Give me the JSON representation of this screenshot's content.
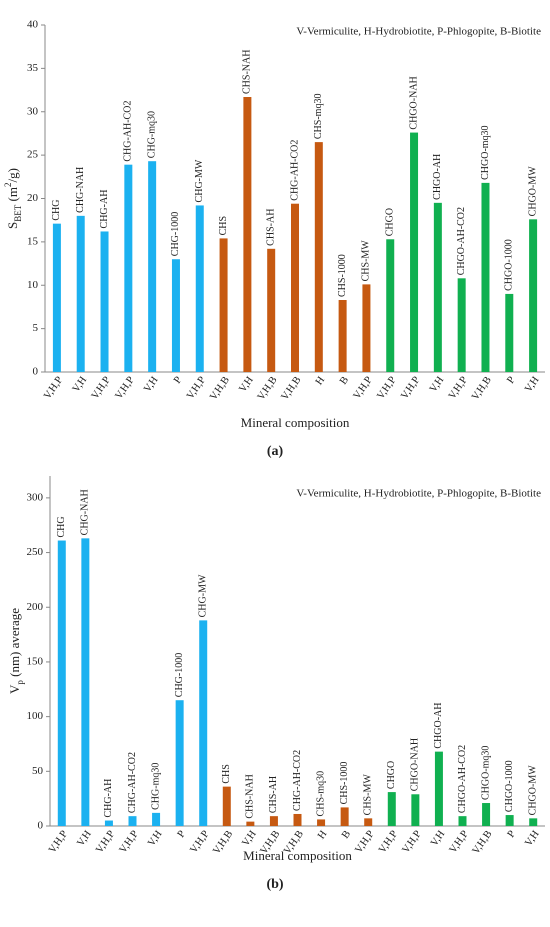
{
  "chart_data": [
    {
      "type": "bar",
      "panel_label": "(a)",
      "note": "V-Vermiculite, H-Hydrobiotite, P-Phlogopite, B-Biotite",
      "xlabel": "Mineral composition",
      "ylabel": [
        {
          "text": "S"
        },
        {
          "text": "BET",
          "shift": "sub"
        },
        {
          "text": " (m"
        },
        {
          "text": "2",
          "shift": "super"
        },
        {
          "text": "/g)"
        }
      ],
      "categories": [
        "V,H,P",
        "V,H",
        "V,H,P",
        "V,H,P",
        "V,H",
        "P",
        "V,H,P",
        "V,H,B",
        "V,H",
        "V,H,B",
        "V,H,B",
        "H",
        "B",
        "V,H,P",
        "V,H,P",
        "V,H,P",
        "V,H",
        "V,H,P",
        "V,H,B",
        "P",
        "V,H"
      ],
      "bar_labels": [
        "CHG",
        "CHG-NAH",
        "CHG-AH",
        "CHG-AH-CO2",
        "CHG-mq30",
        "CHG-1000",
        "CHG-MW",
        "CHS",
        "CHS-NAH",
        "CHS-AH",
        "CHG-AH-CO2",
        "CHS-mq30",
        "CHS-1000",
        "CHS-MW",
        "CHGO",
        "CHGO-NAH",
        "CHGO-AH",
        "CHGO-AH-CO2",
        "CHGO-mq30",
        "CHGO-1000",
        "CHGO-MW"
      ],
      "values": [
        17.1,
        18.0,
        16.2,
        23.9,
        24.3,
        13.0,
        19.2,
        15.4,
        31.7,
        14.2,
        19.4,
        26.5,
        8.3,
        10.1,
        15.3,
        27.6,
        19.5,
        10.8,
        21.8,
        9.0,
        17.6
      ],
      "colors": [
        "#1bb1f0",
        "#1bb1f0",
        "#1bb1f0",
        "#1bb1f0",
        "#1bb1f0",
        "#1bb1f0",
        "#1bb1f0",
        "#c65911",
        "#c65911",
        "#c65911",
        "#c65911",
        "#c65911",
        "#c65911",
        "#c65911",
        "#10b050",
        "#10b050",
        "#10b050",
        "#10b050",
        "#10b050",
        "#10b050",
        "#10b050"
      ],
      "ylim": [
        0,
        40
      ],
      "yticks": [
        0,
        5,
        10,
        15,
        20,
        25,
        30,
        35,
        40
      ]
    },
    {
      "type": "bar",
      "panel_label": "(b)",
      "note": "V-Vermiculite, H-Hydrobiotite, P-Phlogopite, B-Biotite",
      "xlabel": "Mineral composition",
      "ylabel": [
        {
          "text": "V"
        },
        {
          "text": "p",
          "shift": "sub"
        },
        {
          "text": " (nm) average"
        }
      ],
      "categories": [
        "V,H,P",
        "V,H",
        "V,H,P",
        "V,H,P",
        "V,H",
        "P",
        "V,H,P",
        "V,H,B",
        "V,H",
        "V,H,B",
        "V,H,B",
        "H",
        "B",
        "V,H,P",
        "V,H,P",
        "V,H,P",
        "V,H",
        "V,H,P",
        "V,H,B",
        "P",
        "V,H"
      ],
      "bar_labels": [
        "CHG",
        "CHG-NAH",
        "CHG-AH",
        "CHG-AH-CO2",
        "CHG-mq30",
        "CHG-1000",
        "CHG-MW",
        "CHS",
        "CHS-NAH",
        "CHS-AH",
        "CHG-AH-CO2",
        "CHS-mq30",
        "CHS-1000",
        "CHS-MW",
        "CHGO",
        "CHGO-NAH",
        "CHGO-AH",
        "CHGO-AH-CO2",
        "CHGO-mq30",
        "CHGO-1000",
        "CHGO-MW"
      ],
      "values": [
        261,
        263,
        5,
        9,
        12,
        115,
        188,
        36,
        4,
        9,
        11,
        6,
        17,
        7,
        31,
        29,
        68,
        9,
        21,
        10,
        7
      ],
      "colors": [
        "#1bb1f0",
        "#1bb1f0",
        "#1bb1f0",
        "#1bb1f0",
        "#1bb1f0",
        "#1bb1f0",
        "#1bb1f0",
        "#c65911",
        "#c65911",
        "#c65911",
        "#c65911",
        "#c65911",
        "#c65911",
        "#c65911",
        "#10b050",
        "#10b050",
        "#10b050",
        "#10b050",
        "#10b050",
        "#10b050",
        "#10b050"
      ],
      "ylim": [
        0,
        320
      ],
      "yticks": [
        0,
        50,
        100,
        150,
        200,
        250,
        300
      ]
    }
  ]
}
